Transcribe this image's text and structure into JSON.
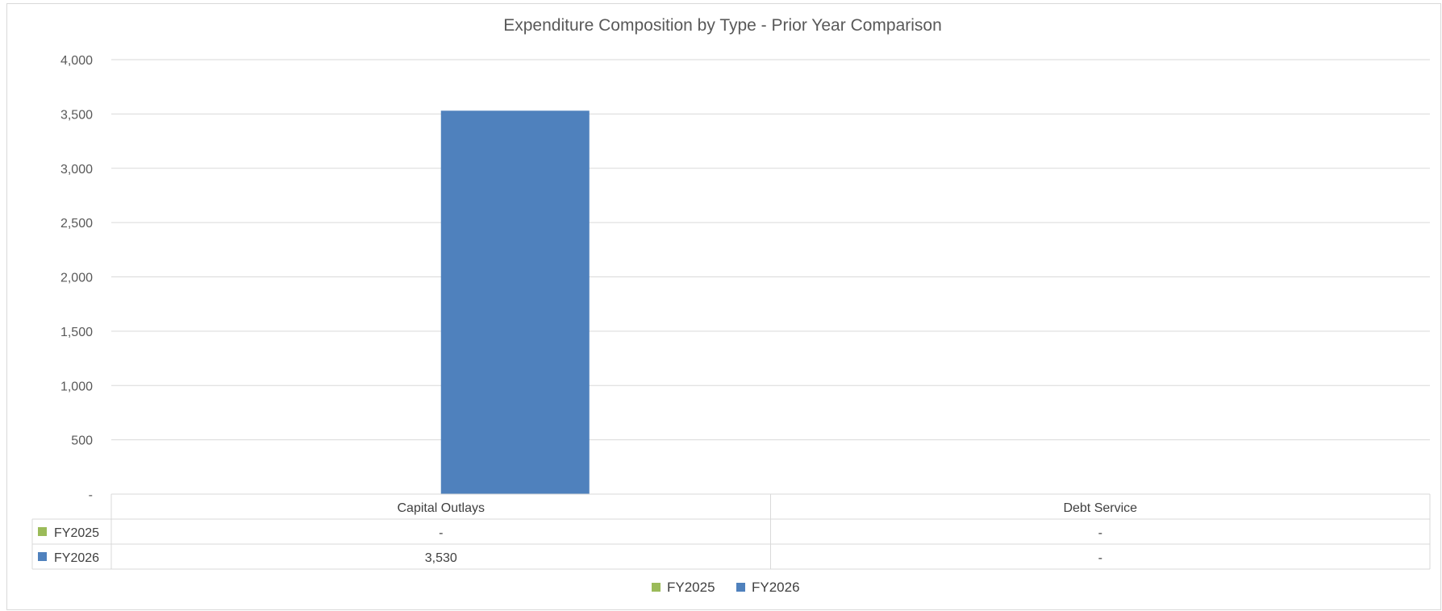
{
  "chart_data": {
    "type": "bar",
    "title": "Expenditure Composition by Type - Prior Year Comparison",
    "categories": [
      "Capital Outlays",
      "Debt Service"
    ],
    "series": [
      {
        "name": "FY2025",
        "values": [
          0,
          0
        ],
        "labels": [
          "-",
          "-"
        ],
        "color": "#9bbb59"
      },
      {
        "name": "FY2026",
        "values": [
          3530,
          0
        ],
        "labels": [
          "3,530",
          "-"
        ],
        "color": "#4f81bd"
      }
    ],
    "ylim": [
      0,
      4000
    ],
    "yticks": [
      0,
      500,
      1000,
      1500,
      2000,
      2500,
      3000,
      3500,
      4000
    ],
    "ytick_labels": [
      "-",
      "500",
      "1,000",
      "1,500",
      "2,000",
      "2,500",
      "3,000",
      "3,500",
      "4,000"
    ],
    "grid": true,
    "legend": "bottom",
    "data_table": true
  }
}
